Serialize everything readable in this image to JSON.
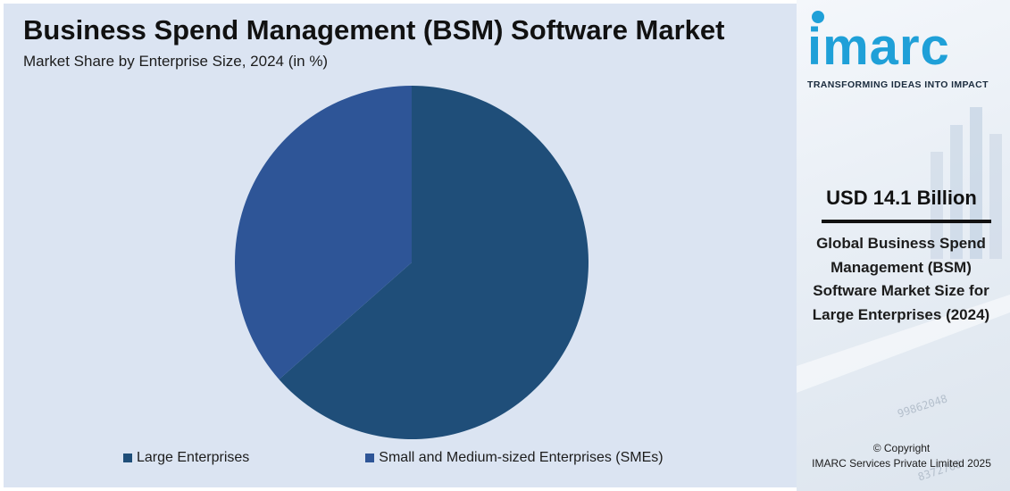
{
  "header": {
    "title": "Business Spend Management (BSM) Software Market",
    "subtitle": "Market Share by Enterprise Size, 2024 (in %)"
  },
  "chart_data": {
    "type": "pie",
    "title": "Business Spend Management (BSM) Software Market",
    "subtitle": "Market Share by Enterprise Size, 2024 (in %)",
    "categories": [
      "Large Enterprises",
      "Small and Medium-sized Enterprises (SMEs)"
    ],
    "values": [
      63.5,
      36.5
    ],
    "colors": [
      "#1f4e79",
      "#2e5597"
    ],
    "start_angle": "12 o'clock, clockwise",
    "legend_position": "bottom"
  },
  "legend": {
    "items": [
      {
        "label": "Large Enterprises",
        "color": "#1f4e79"
      },
      {
        "label": "Small and Medium-sized Enterprises (SMEs)",
        "color": "#2e5597"
      }
    ]
  },
  "brand": {
    "logo_text": "imarc",
    "tagline": "TRANSFORMING IDEAS INTO IMPACT",
    "color": "#1fa0d8"
  },
  "highlight": {
    "value": "USD 14.1 Billion",
    "description": "Global Business Spend Management (BSM) Software Market Size for Large Enterprises (2024)"
  },
  "footer": {
    "copyright_line1": "© Copyright",
    "copyright_line2": "IMARC Services Private Limited 2025"
  }
}
